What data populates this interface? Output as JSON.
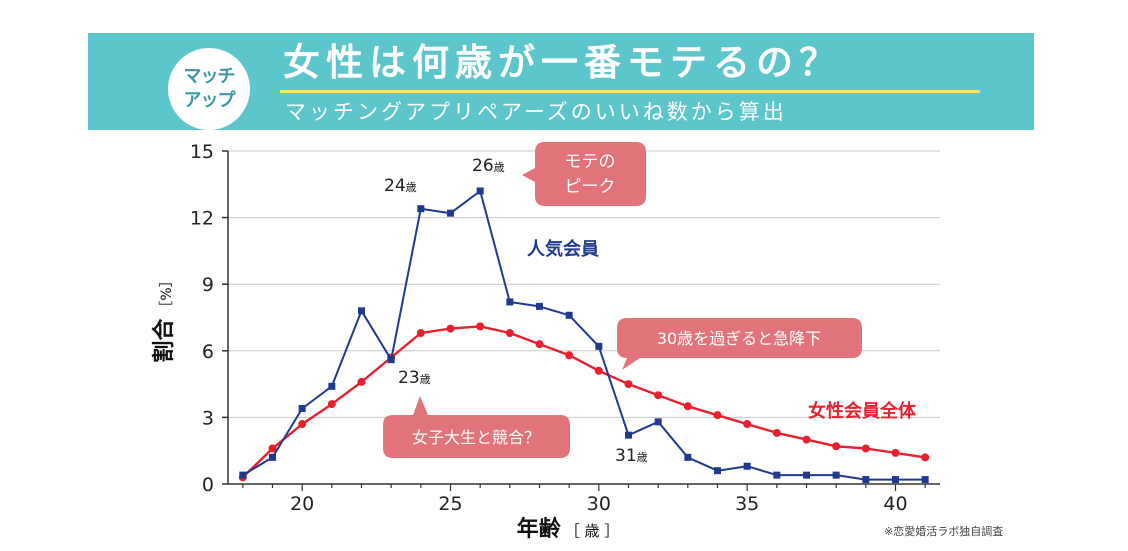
{
  "header": {
    "logo_line1": "マッチ",
    "logo_line2": "アップ",
    "title": "女性は何歳が一番モテるの？",
    "subtitle": "マッチングアプリペアーズのいいね数から算出"
  },
  "source_note": "※恋愛婚活ラボ独自調査",
  "colors": {
    "banner": "#5cc6cc",
    "popular": "#1f3a8f",
    "overall": "#e8202e",
    "callout": "#e2737a"
  },
  "chart_data": {
    "type": "line",
    "title": "女性は何歳が一番モテるの？",
    "xlabel": "年齢",
    "xlabel_unit": "［ 歳 ］",
    "ylabel": "割合",
    "ylabel_unit": "［%］",
    "xlim": [
      17.5,
      41.5
    ],
    "ylim": [
      0,
      15
    ],
    "xticks": [
      20,
      25,
      30,
      35,
      40
    ],
    "yticks": [
      0,
      3,
      6,
      9,
      12,
      15
    ],
    "x": [
      18,
      19,
      20,
      21,
      22,
      23,
      24,
      25,
      26,
      27,
      28,
      29,
      30,
      31,
      32,
      33,
      34,
      35,
      36,
      37,
      38,
      39,
      40,
      41
    ],
    "series": [
      {
        "name": "人気会員",
        "color": "#1f3a8f",
        "values": [
          0.4,
          1.2,
          3.4,
          4.4,
          7.8,
          5.6,
          12.4,
          12.2,
          13.2,
          8.2,
          8.0,
          7.6,
          6.2,
          2.2,
          2.8,
          1.2,
          0.6,
          0.8,
          0.4,
          0.4,
          0.4,
          0.2,
          0.2,
          0.2
        ]
      },
      {
        "name": "女性会員全体",
        "color": "#e8202e",
        "values": [
          0.3,
          1.6,
          2.7,
          3.6,
          4.6,
          5.7,
          6.8,
          7.0,
          7.1,
          6.8,
          6.3,
          5.8,
          5.1,
          4.5,
          4.0,
          3.5,
          3.1,
          2.7,
          2.3,
          2.0,
          1.7,
          1.6,
          1.4,
          1.2
        ]
      }
    ],
    "annotations": {
      "age24": "24",
      "age26": "26",
      "age23": "23",
      "age31": "31",
      "age_unit": "歳"
    },
    "callouts": {
      "peak": [
        "モテの",
        "ピーク"
      ],
      "drop": "30歳を過ぎると急降下",
      "compete": "女子大生と競合？"
    }
  }
}
